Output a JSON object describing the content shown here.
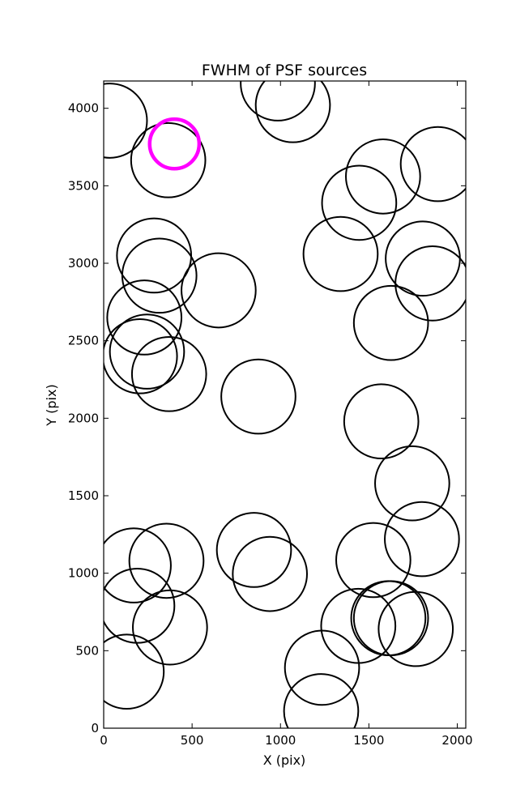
{
  "chart_data": {
    "type": "scatter",
    "title": "FWHM of PSF sources",
    "xlabel": "X (pix)",
    "ylabel": "Y (pix)",
    "xlim": [
      0,
      2048
    ],
    "ylim": [
      0,
      4176
    ],
    "xticks": [
      0,
      500,
      1000,
      1500,
      2000
    ],
    "yticks": [
      0,
      500,
      1000,
      1500,
      2000,
      2500,
      3000,
      3500,
      4000
    ],
    "marker": "open circle, radius in pixel units",
    "series": [
      {
        "color": "#000000",
        "points": [
          {
            "x": 35,
            "y": 3920,
            "r": 210
          },
          {
            "x": 365,
            "y": 3665,
            "r": 210
          },
          {
            "x": 985,
            "y": 4160,
            "r": 210
          },
          {
            "x": 1070,
            "y": 4020,
            "r": 210
          },
          {
            "x": 1580,
            "y": 3560,
            "r": 210
          },
          {
            "x": 1445,
            "y": 3390,
            "r": 210
          },
          {
            "x": 1890,
            "y": 3640,
            "r": 210
          },
          {
            "x": 1340,
            "y": 3060,
            "r": 210
          },
          {
            "x": 1805,
            "y": 3030,
            "r": 210
          },
          {
            "x": 1860,
            "y": 2870,
            "r": 210
          },
          {
            "x": 1625,
            "y": 2615,
            "r": 210
          },
          {
            "x": 285,
            "y": 3050,
            "r": 210
          },
          {
            "x": 315,
            "y": 2920,
            "r": 210
          },
          {
            "x": 650,
            "y": 2825,
            "r": 210
          },
          {
            "x": 230,
            "y": 2650,
            "r": 210
          },
          {
            "x": 205,
            "y": 2400,
            "r": 210
          },
          {
            "x": 245,
            "y": 2430,
            "r": 210
          },
          {
            "x": 370,
            "y": 2285,
            "r": 210
          },
          {
            "x": 875,
            "y": 2140,
            "r": 210
          },
          {
            "x": 1570,
            "y": 1980,
            "r": 210
          },
          {
            "x": 1745,
            "y": 1580,
            "r": 210
          },
          {
            "x": 1800,
            "y": 1220,
            "r": 210
          },
          {
            "x": 170,
            "y": 1050,
            "r": 210
          },
          {
            "x": 355,
            "y": 1080,
            "r": 210
          },
          {
            "x": 850,
            "y": 1150,
            "r": 210
          },
          {
            "x": 940,
            "y": 995,
            "r": 210
          },
          {
            "x": 1525,
            "y": 1085,
            "r": 210
          },
          {
            "x": 190,
            "y": 790,
            "r": 210
          },
          {
            "x": 375,
            "y": 650,
            "r": 210
          },
          {
            "x": 1440,
            "y": 660,
            "r": 210
          },
          {
            "x": 1610,
            "y": 710,
            "r": 210
          },
          {
            "x": 1625,
            "y": 710,
            "r": 210
          },
          {
            "x": 1765,
            "y": 640,
            "r": 210
          },
          {
            "x": 1235,
            "y": 390,
            "r": 210
          },
          {
            "x": 1230,
            "y": 110,
            "r": 210
          },
          {
            "x": 130,
            "y": 365,
            "r": 210
          }
        ]
      },
      {
        "color": "#ff00ff",
        "points": [
          {
            "x": 400,
            "y": 3770,
            "r": 140
          }
        ]
      }
    ]
  }
}
